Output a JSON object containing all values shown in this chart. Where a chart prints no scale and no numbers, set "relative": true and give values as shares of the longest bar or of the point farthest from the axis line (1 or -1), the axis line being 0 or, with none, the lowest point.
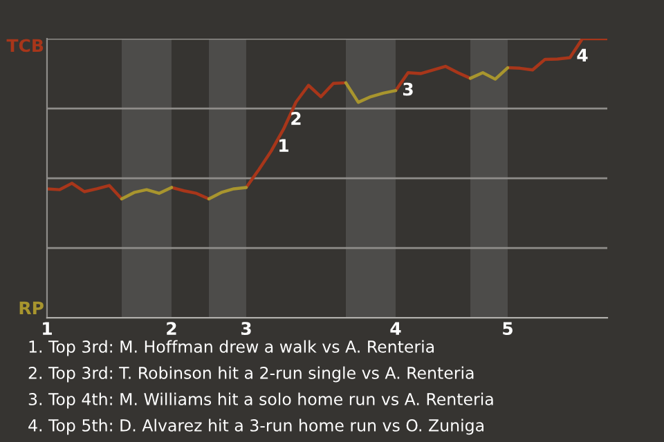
{
  "chart_data": {
    "type": "line",
    "relative": true,
    "grid": "y",
    "categories": [
      "1",
      null,
      null,
      null,
      null,
      null,
      null,
      null,
      null,
      null,
      "2",
      null,
      null,
      null,
      null,
      null,
      "3",
      null,
      null,
      null,
      null,
      null,
      null,
      null,
      null,
      null,
      null,
      null,
      "4",
      null,
      null,
      null,
      null,
      null,
      null,
      null,
      null,
      "5",
      null,
      null,
      null,
      null,
      null,
      null,
      null,
      null
    ],
    "series": [
      {
        "name": "TCB",
        "color": "#a8361a",
        "values": [
          0.462,
          0.459,
          0.482,
          0.452,
          0.462,
          0.474,
          0.426,
          null,
          null,
          null,
          0.467,
          0.455,
          0.446,
          0.426,
          null,
          null,
          0.467,
          0.53,
          0.597,
          0.676,
          0.773,
          0.833,
          0.792,
          0.84,
          0.842,
          null,
          null,
          null,
          0.814,
          0.878,
          0.875,
          0.888,
          0.901,
          0.878,
          0.858,
          null,
          null,
          0.896,
          0.894,
          0.888,
          0.926,
          0.927,
          0.932,
          1,
          1,
          1
        ]
      },
      {
        "name": "RP",
        "color": "#a8952e",
        "values": [
          null,
          null,
          null,
          null,
          null,
          null,
          0.426,
          0.449,
          0.459,
          0.446,
          0.467,
          null,
          null,
          0.426,
          0.449,
          0.462,
          0.467,
          null,
          null,
          null,
          null,
          null,
          null,
          null,
          0.842,
          0.772,
          0.792,
          0.805,
          0.814,
          null,
          null,
          null,
          null,
          null,
          0.858,
          0.878,
          0.855,
          0.896,
          null,
          null,
          null,
          null,
          null,
          null,
          null,
          null
        ]
      }
    ],
    "annotations": [
      {
        "text": "1",
        "y": 0.676
      },
      {
        "text": "2",
        "y": 0.773
      },
      {
        "text": "3",
        "y": 0.878
      },
      {
        "text": "4",
        "y": 1
      },
      "1. Top 3rd: M. Hoffman drew a walk vs A. Renteria",
      "2. Top 3rd: T. Robinson hit a 2-run single vs A. Renteria",
      "3. Top 4th: M. Williams hit a solo home run vs A. Renteria",
      "4. Top 5th: D. Alvarez hit a 3-run home run vs O. Zuniga"
    ]
  }
}
